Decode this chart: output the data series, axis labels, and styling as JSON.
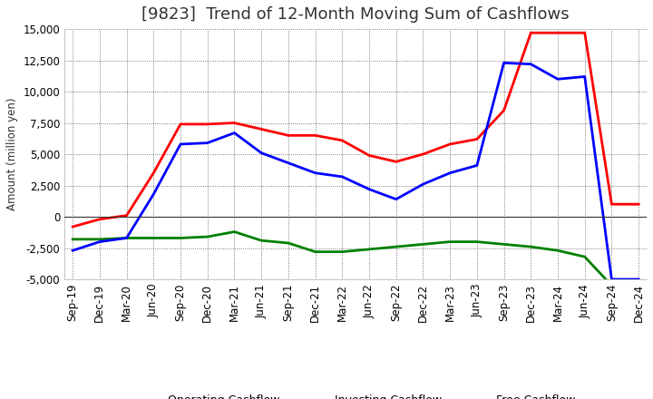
{
  "title": "[9823]  Trend of 12-Month Moving Sum of Cashflows",
  "ylabel": "Amount (million yen)",
  "x_labels": [
    "Sep-19",
    "Dec-19",
    "Mar-20",
    "Jun-20",
    "Sep-20",
    "Dec-20",
    "Mar-21",
    "Jun-21",
    "Sep-21",
    "Dec-21",
    "Mar-22",
    "Jun-22",
    "Sep-22",
    "Dec-22",
    "Mar-23",
    "Jun-23",
    "Sep-23",
    "Dec-23",
    "Mar-24",
    "Jun-24",
    "Sep-24",
    "Dec-24"
  ],
  "operating_cashflow": [
    -800,
    -200,
    100,
    3500,
    7400,
    7400,
    7500,
    7000,
    6500,
    6500,
    6100,
    4900,
    4400,
    5000,
    5800,
    6200,
    8500,
    14700,
    14700,
    14700,
    1000,
    1000
  ],
  "investing_cashflow": [
    -1800,
    -1800,
    -1700,
    -1700,
    -1700,
    -1600,
    -1200,
    -1900,
    -2100,
    -2800,
    -2800,
    -2600,
    -2400,
    -2200,
    -2000,
    -2000,
    -2200,
    -2400,
    -2700,
    -3200,
    -5500,
    -5500
  ],
  "free_cashflow": [
    -2700,
    -2000,
    -1700,
    1800,
    5800,
    5900,
    6700,
    5100,
    4300,
    3500,
    3200,
    2200,
    1400,
    2600,
    3500,
    4100,
    12300,
    12200,
    11000,
    11200,
    -5000,
    -5000
  ],
  "operating_color": "#ff0000",
  "investing_color": "#008000",
  "free_color": "#0000ff",
  "ylim": [
    -5000,
    15000
  ],
  "yticks": [
    -5000,
    -2500,
    0,
    2500,
    5000,
    7500,
    10000,
    12500,
    15000
  ],
  "background_color": "#ffffff",
  "plot_bg_color": "#ffffff",
  "grid_color": "#555555",
  "linewidth": 2.0,
  "title_fontsize": 13,
  "axis_fontsize": 8.5,
  "legend_fontsize": 9
}
